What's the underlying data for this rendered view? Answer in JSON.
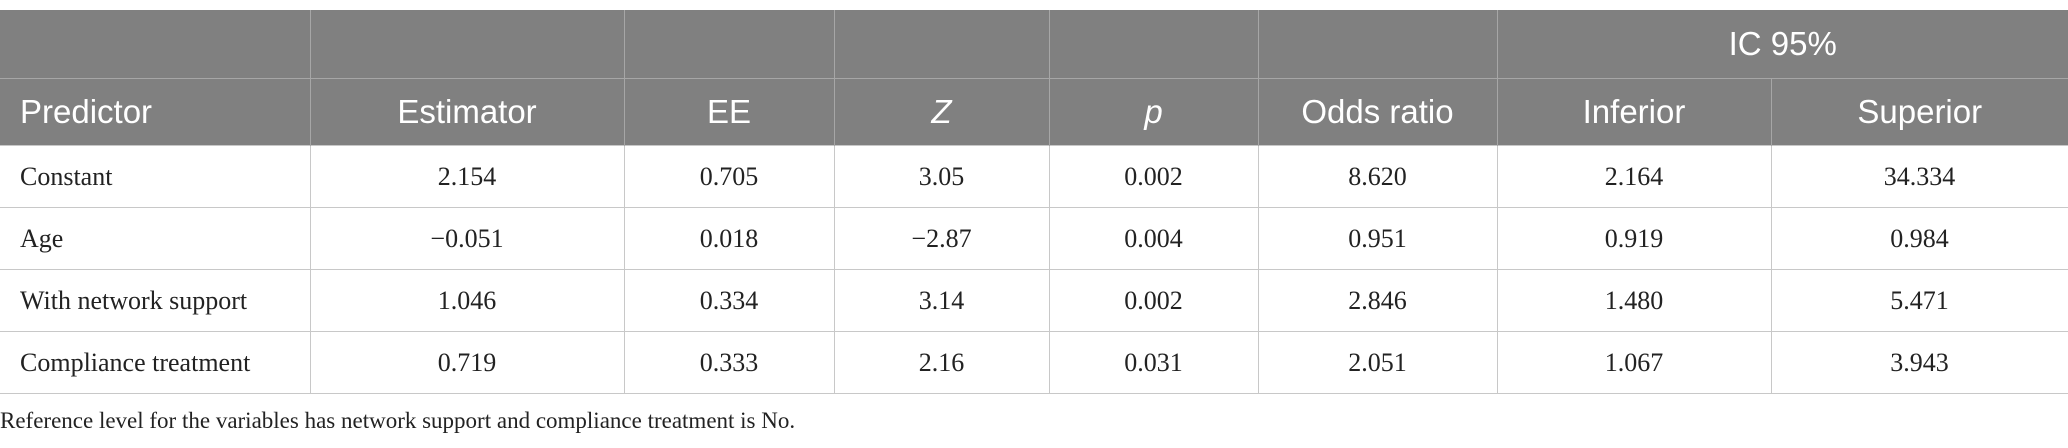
{
  "header": {
    "group_label": "IC 95%",
    "columns": [
      "Predictor",
      "Estimator",
      "EE",
      "Z",
      "p",
      "Odds ratio",
      "Inferior",
      "Superior"
    ]
  },
  "table": {
    "rows": [
      [
        "Constant",
        "2.154",
        "0.705",
        "3.05",
        "0.002",
        "8.620",
        "2.164",
        "34.334"
      ],
      [
        "Age",
        "−0.051",
        "0.018",
        "−2.87",
        "0.004",
        "0.951",
        "0.919",
        "0.984"
      ],
      [
        "With network support",
        "1.046",
        "0.334",
        "3.14",
        "0.002",
        "2.846",
        "1.480",
        "5.471"
      ],
      [
        "Compliance treatment",
        "0.719",
        "0.333",
        "2.16",
        "0.031",
        "2.051",
        "1.067",
        "3.943"
      ]
    ]
  },
  "footnote": "Reference level for the variables has network support and compliance treatment is No."
}
